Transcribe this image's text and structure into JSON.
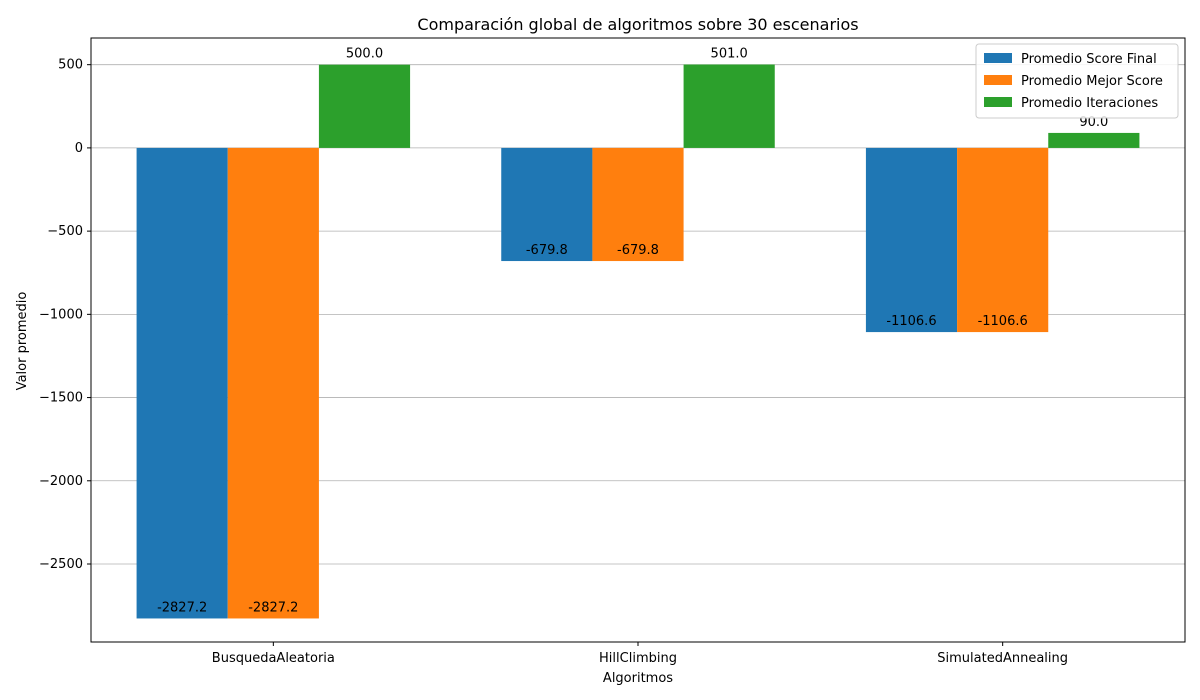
{
  "chart_data": {
    "type": "bar",
    "title": "Comparación global de algoritmos sobre 30 escenarios",
    "xlabel": "Algoritmos",
    "ylabel": "Valor promedio",
    "categories": [
      "BusquedaAleatoria",
      "HillClimbing",
      "SimulatedAnnealing"
    ],
    "series": [
      {
        "name": "Promedio Score Final",
        "color": "#1f77b4",
        "values": [
          -2827.2,
          -679.8,
          -1106.6
        ],
        "labels": [
          "-2827.2",
          "-679.8",
          "-1106.6"
        ]
      },
      {
        "name": "Promedio Mejor Score",
        "color": "#ff7f0e",
        "values": [
          -2827.2,
          -679.8,
          -1106.6
        ],
        "labels": [
          "-2827.2",
          "-679.8",
          "-1106.6"
        ]
      },
      {
        "name": "Promedio Iteraciones",
        "color": "#2ca02c",
        "values": [
          500.0,
          501.0,
          90.0
        ],
        "labels": [
          "500.0",
          "501.0",
          "90.0"
        ]
      }
    ],
    "ylim": [
      -2968.6,
      660.3
    ],
    "yticks": [
      500,
      0,
      -500,
      -1000,
      -1500,
      -2000,
      -2500
    ],
    "ytick_labels": [
      "500",
      "0",
      "−500",
      "−1000",
      "−1500",
      "−2000",
      "−2500"
    ],
    "grid": "y",
    "legend": "top-right"
  }
}
